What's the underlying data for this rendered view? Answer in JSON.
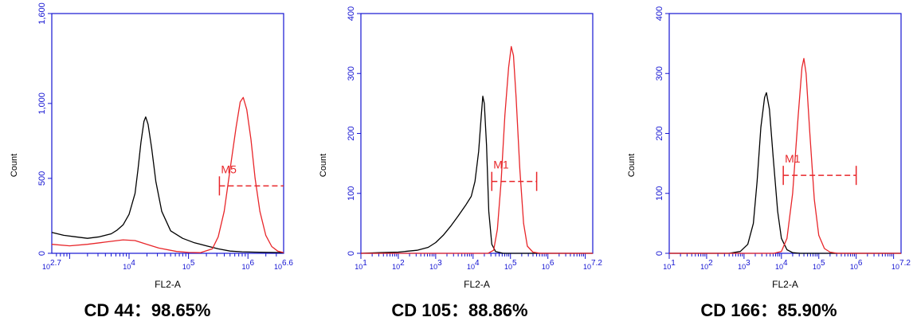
{
  "chart_data": [
    {
      "type": "area",
      "title": "",
      "caption": "CD 44：98.65%",
      "xlabel": "FL2-A",
      "ylabel": "Count",
      "xscale": "log",
      "xlim": [
        2.7,
        6.6
      ],
      "ylim": [
        0,
        1600
      ],
      "yticks": [
        "0",
        "500",
        "1,000",
        "1,600"
      ],
      "xticks": [
        "10^2.7",
        "10^4",
        "10^5",
        "10^6",
        "10^6.6"
      ],
      "marker": {
        "label": "M5",
        "x_start_log": 5.52,
        "x_end_log": 6.6,
        "y": 450
      },
      "series": [
        {
          "color": "#000000",
          "points": [
            [
              2.7,
              140
            ],
            [
              2.9,
              120
            ],
            [
              3.1,
              110
            ],
            [
              3.3,
              100
            ],
            [
              3.5,
              110
            ],
            [
              3.7,
              130
            ],
            [
              3.8,
              155
            ],
            [
              3.9,
              190
            ],
            [
              4.0,
              260
            ],
            [
              4.1,
              400
            ],
            [
              4.15,
              560
            ],
            [
              4.2,
              740
            ],
            [
              4.25,
              880
            ],
            [
              4.28,
              910
            ],
            [
              4.32,
              860
            ],
            [
              4.38,
              700
            ],
            [
              4.45,
              480
            ],
            [
              4.55,
              280
            ],
            [
              4.7,
              150
            ],
            [
              4.9,
              100
            ],
            [
              5.1,
              70
            ],
            [
              5.3,
              50
            ],
            [
              5.5,
              30
            ],
            [
              5.7,
              15
            ],
            [
              5.9,
              10
            ],
            [
              6.1,
              8
            ],
            [
              6.4,
              6
            ],
            [
              6.6,
              5
            ]
          ]
        },
        {
          "color": "#e8262a",
          "points": [
            [
              2.7,
              60
            ],
            [
              3.0,
              50
            ],
            [
              3.3,
              60
            ],
            [
              3.6,
              75
            ],
            [
              3.9,
              90
            ],
            [
              4.1,
              85
            ],
            [
              4.3,
              60
            ],
            [
              4.5,
              35
            ],
            [
              4.8,
              12
            ],
            [
              5.0,
              6
            ],
            [
              5.2,
              4
            ],
            [
              5.4,
              30
            ],
            [
              5.5,
              110
            ],
            [
              5.6,
              280
            ],
            [
              5.7,
              560
            ],
            [
              5.8,
              840
            ],
            [
              5.87,
              1010
            ],
            [
              5.92,
              1040
            ],
            [
              5.98,
              960
            ],
            [
              6.05,
              760
            ],
            [
              6.12,
              500
            ],
            [
              6.2,
              280
            ],
            [
              6.3,
              120
            ],
            [
              6.4,
              45
            ],
            [
              6.5,
              15
            ],
            [
              6.6,
              5
            ]
          ]
        }
      ]
    },
    {
      "type": "area",
      "title": "",
      "caption": "CD 105：88.86%",
      "xlabel": "FL2-A",
      "ylabel": "Count",
      "xscale": "log",
      "xlim": [
        1,
        7.2
      ],
      "ylim": [
        0,
        400
      ],
      "yticks": [
        "0",
        "100",
        "200",
        "300",
        "400"
      ],
      "xticks": [
        "10^1",
        "10^2",
        "10^3",
        "10^4",
        "10^5",
        "10^6",
        "10^7.2"
      ],
      "marker": {
        "label": "M1",
        "x_start_log": 4.5,
        "x_end_log": 5.7,
        "y": 120
      },
      "series": [
        {
          "color": "#000000",
          "points": [
            [
              1.0,
              0
            ],
            [
              1.5,
              1
            ],
            [
              2.0,
              2
            ],
            [
              2.5,
              5
            ],
            [
              2.8,
              10
            ],
            [
              3.0,
              18
            ],
            [
              3.2,
              30
            ],
            [
              3.4,
              45
            ],
            [
              3.6,
              62
            ],
            [
              3.8,
              80
            ],
            [
              3.95,
              95
            ],
            [
              4.05,
              120
            ],
            [
              4.15,
              170
            ],
            [
              4.22,
              230
            ],
            [
              4.26,
              262
            ],
            [
              4.3,
              250
            ],
            [
              4.36,
              180
            ],
            [
              4.42,
              70
            ],
            [
              4.5,
              15
            ],
            [
              4.6,
              3
            ],
            [
              4.8,
              0
            ],
            [
              7.2,
              0
            ]
          ]
        },
        {
          "color": "#e8262a",
          "points": [
            [
              1.0,
              0
            ],
            [
              4.4,
              0
            ],
            [
              4.55,
              5
            ],
            [
              4.65,
              40
            ],
            [
              4.75,
              120
            ],
            [
              4.85,
              230
            ],
            [
              4.95,
              310
            ],
            [
              5.02,
              345
            ],
            [
              5.08,
              330
            ],
            [
              5.15,
              260
            ],
            [
              5.25,
              140
            ],
            [
              5.35,
              50
            ],
            [
              5.45,
              12
            ],
            [
              5.6,
              2
            ],
            [
              5.8,
              0
            ],
            [
              7.2,
              0
            ]
          ]
        }
      ]
    },
    {
      "type": "area",
      "title": "",
      "caption": "CD 166：85.90%",
      "xlabel": "FL2-A",
      "ylabel": "Count",
      "xscale": "log",
      "xlim": [
        1,
        7.2
      ],
      "ylim": [
        0,
        400
      ],
      "yticks": [
        "0",
        "100",
        "200",
        "300",
        "400"
      ],
      "xticks": [
        "10^1",
        "10^2",
        "10^3",
        "10^4",
        "10^5",
        "10^6",
        "10^7.2"
      ],
      "marker": {
        "label": "M1",
        "x_start_log": 4.05,
        "x_end_log": 6.0,
        "y": 130
      },
      "series": [
        {
          "color": "#000000",
          "points": [
            [
              1.0,
              0
            ],
            [
              2.6,
              0
            ],
            [
              2.9,
              3
            ],
            [
              3.1,
              15
            ],
            [
              3.25,
              50
            ],
            [
              3.35,
              120
            ],
            [
              3.45,
              210
            ],
            [
              3.55,
              260
            ],
            [
              3.6,
              268
            ],
            [
              3.68,
              240
            ],
            [
              3.78,
              160
            ],
            [
              3.9,
              70
            ],
            [
              4.0,
              25
            ],
            [
              4.15,
              6
            ],
            [
              4.3,
              1
            ],
            [
              4.5,
              0
            ],
            [
              7.2,
              0
            ]
          ]
        },
        {
          "color": "#e8262a",
          "points": [
            [
              1.0,
              0
            ],
            [
              3.8,
              0
            ],
            [
              4.0,
              3
            ],
            [
              4.15,
              25
            ],
            [
              4.3,
              100
            ],
            [
              4.45,
              230
            ],
            [
              4.55,
              310
            ],
            [
              4.6,
              325
            ],
            [
              4.66,
              300
            ],
            [
              4.76,
              200
            ],
            [
              4.88,
              90
            ],
            [
              5.0,
              30
            ],
            [
              5.15,
              8
            ],
            [
              5.3,
              2
            ],
            [
              5.5,
              0
            ],
            [
              7.2,
              0
            ]
          ]
        }
      ]
    }
  ]
}
